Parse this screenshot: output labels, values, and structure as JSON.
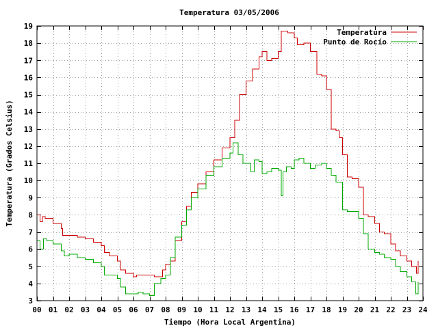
{
  "chart_data": {
    "type": "line",
    "title": "Temperatura 03/05/2006",
    "xlabel": "Tiempo (Hora Local Argentina)",
    "ylabel": "Temperatura (Grados Celsius)",
    "xlim": [
      0,
      24
    ],
    "ylim": [
      3,
      19
    ],
    "x_tick_values": [
      0,
      1,
      2,
      3,
      4,
      5,
      6,
      7,
      8,
      9,
      10,
      11,
      12,
      13,
      14,
      15,
      16,
      17,
      18,
      19,
      20,
      21,
      22,
      23,
      24
    ],
    "x_tick_labels": [
      "00",
      "01",
      "02",
      "03",
      "04",
      "05",
      "06",
      "07",
      "08",
      "09",
      "10",
      "11",
      "12",
      "13",
      "14",
      "15",
      "16",
      "17",
      "18",
      "19",
      "20",
      "21",
      "22",
      "23",
      "24"
    ],
    "y_tick_values": [
      3,
      4,
      5,
      6,
      7,
      8,
      9,
      10,
      11,
      12,
      13,
      14,
      15,
      16,
      17,
      18,
      19
    ],
    "y_tick_labels": [
      "3",
      "4",
      "5",
      "6",
      "7",
      "8",
      "9",
      "10",
      "11",
      "12",
      "13",
      "14",
      "15",
      "16",
      "17",
      "18",
      "19"
    ],
    "grid": true,
    "legend_position": "top-right",
    "series": [
      {
        "name": "Temperatura",
        "color": "#cc0000",
        "x": [
          0.0,
          0.2,
          0.35,
          0.5,
          1.0,
          1.5,
          1.6,
          2.0,
          2.5,
          3.0,
          3.5,
          4.0,
          4.2,
          4.5,
          5.0,
          5.2,
          5.5,
          6.0,
          6.2,
          6.6,
          7.0,
          7.3,
          7.8,
          8.0,
          8.3,
          8.6,
          9.0,
          9.3,
          9.6,
          10.0,
          10.5,
          11.0,
          11.5,
          12.0,
          12.3,
          12.6,
          13.0,
          13.4,
          13.8,
          14.0,
          14.3,
          14.6,
          14.9,
          15.0,
          15.2,
          15.6,
          16.0,
          16.2,
          16.6,
          17.0,
          17.4,
          17.7,
          18.0,
          18.3,
          18.6,
          18.8,
          19.0,
          19.3,
          19.6,
          20.0,
          20.3,
          20.6,
          21.0,
          21.3,
          21.6,
          22.0,
          22.3,
          22.6,
          23.0,
          23.3,
          23.6,
          23.7
        ],
        "y": [
          8.0,
          7.6,
          7.9,
          7.8,
          7.5,
          7.2,
          6.8,
          6.8,
          6.7,
          6.6,
          6.4,
          6.2,
          5.8,
          5.6,
          5.3,
          4.8,
          4.6,
          4.4,
          4.5,
          4.5,
          4.5,
          4.4,
          4.8,
          5.1,
          5.3,
          6.5,
          7.6,
          8.5,
          9.3,
          9.8,
          10.5,
          11.2,
          11.9,
          12.5,
          13.5,
          15.0,
          15.8,
          16.5,
          17.2,
          17.5,
          17.0,
          17.1,
          17.1,
          17.5,
          18.7,
          18.6,
          18.3,
          17.9,
          18.0,
          17.5,
          16.2,
          16.1,
          15.3,
          13.0,
          12.9,
          12.5,
          11.5,
          10.2,
          10.1,
          9.6,
          8.0,
          7.9,
          7.5,
          7.0,
          6.9,
          6.3,
          5.9,
          5.6,
          5.3,
          5.0,
          4.6,
          5.3
        ]
      },
      {
        "name": "Punto de Rocío",
        "color": "#00aa00",
        "x": [
          0.0,
          0.2,
          0.4,
          0.6,
          1.0,
          1.5,
          1.7,
          2.0,
          2.5,
          3.0,
          3.5,
          4.0,
          4.2,
          4.6,
          5.0,
          5.2,
          5.5,
          6.0,
          6.3,
          6.6,
          7.0,
          7.3,
          7.7,
          8.0,
          8.3,
          8.6,
          9.0,
          9.3,
          9.6,
          10.0,
          10.5,
          11.0,
          11.5,
          12.0,
          12.2,
          12.5,
          12.8,
          13.0,
          13.3,
          13.5,
          13.8,
          14.0,
          14.3,
          14.6,
          15.0,
          15.2,
          15.3,
          15.5,
          15.8,
          16.0,
          16.3,
          16.6,
          17.0,
          17.3,
          17.7,
          18.0,
          18.3,
          18.6,
          19.0,
          19.3,
          19.6,
          20.0,
          20.3,
          20.6,
          21.0,
          21.3,
          21.6,
          22.0,
          22.3,
          22.6,
          23.0,
          23.3,
          23.55,
          23.7
        ],
        "y": [
          6.5,
          6.0,
          6.6,
          6.5,
          6.3,
          5.9,
          5.6,
          5.7,
          5.5,
          5.4,
          5.2,
          5.0,
          4.5,
          4.5,
          4.3,
          3.8,
          3.4,
          3.4,
          3.5,
          3.4,
          3.3,
          4.0,
          4.3,
          4.5,
          5.5,
          6.7,
          7.4,
          8.3,
          9.0,
          9.5,
          10.3,
          10.8,
          11.3,
          11.6,
          12.2,
          11.5,
          11.0,
          11.0,
          10.5,
          11.2,
          11.1,
          10.4,
          10.5,
          10.7,
          10.6,
          9.1,
          10.5,
          10.8,
          10.7,
          11.2,
          11.3,
          11.0,
          10.7,
          10.9,
          11.0,
          10.7,
          10.3,
          9.9,
          8.3,
          8.2,
          8.2,
          7.8,
          6.9,
          6.0,
          5.8,
          5.7,
          5.5,
          5.4,
          5.0,
          4.7,
          4.4,
          4.1,
          3.4,
          4.1
        ]
      }
    ]
  }
}
